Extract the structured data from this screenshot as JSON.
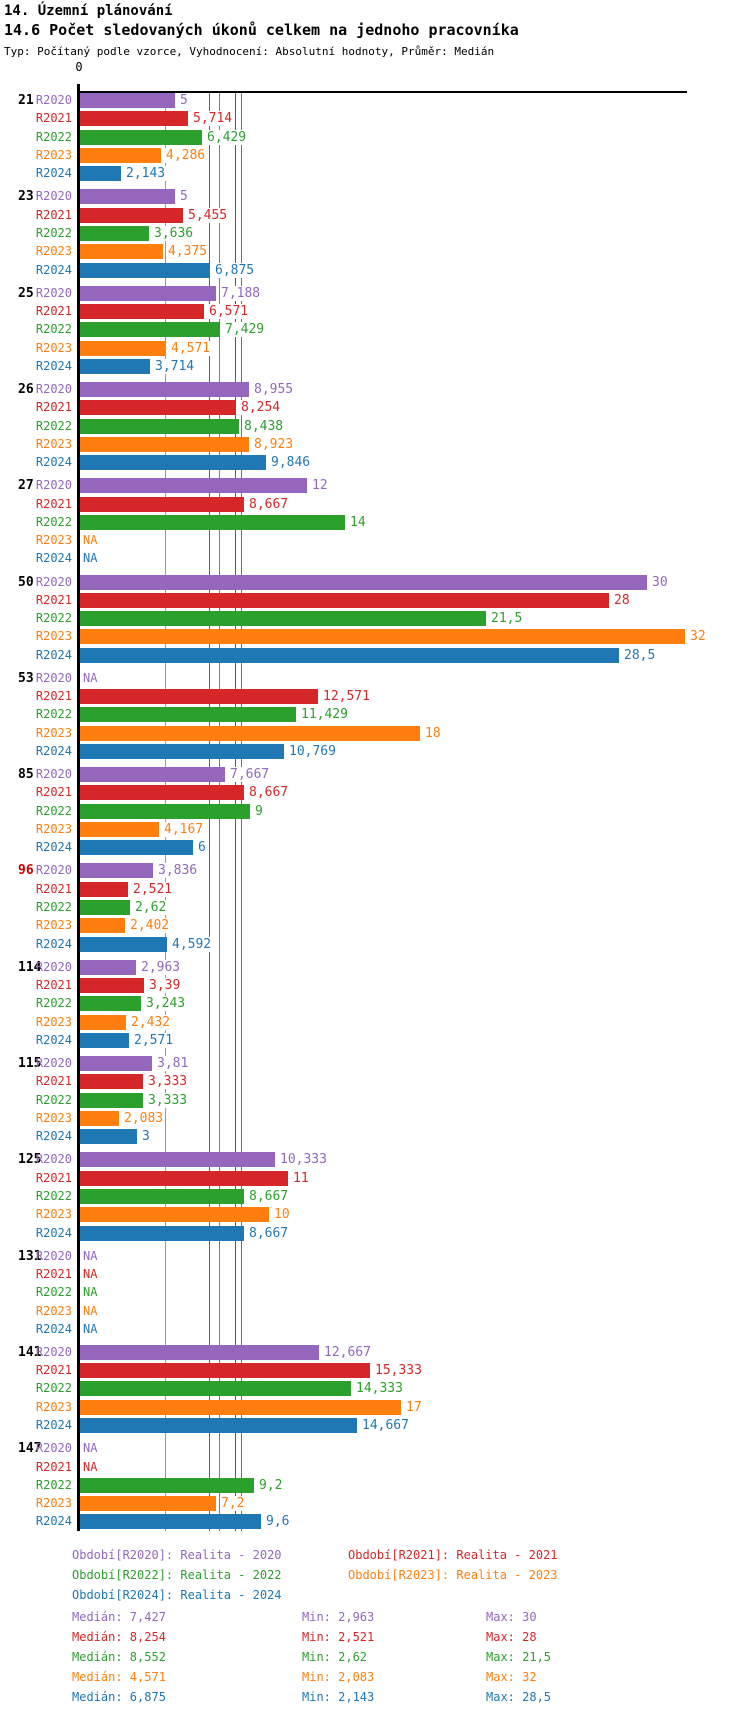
{
  "header": {
    "title": "14. Územní plánování",
    "subtitle": "14.6 Počet sledovaných úkonů celkem na jednoho pracovníka",
    "meta": "Typ: Počítaný podle vzorce, Vyhodnocení: Absolutní hodnoty, Průměr: Medián"
  },
  "chart_data": {
    "type": "bar",
    "orientation": "horizontal-grouped",
    "axis_zero_label": "0",
    "xlim": [
      0,
      32
    ],
    "na_text": "NA",
    "series": [
      "R2020",
      "R2021",
      "R2022",
      "R2023",
      "R2024"
    ],
    "series_colors": {
      "R2020": "#9467bd",
      "R2021": "#d62728",
      "R2022": "#2ca02c",
      "R2023": "#ff7f0e",
      "R2024": "#1f77b4"
    },
    "highlight_color": "#cc0000",
    "groups": [
      {
        "id": "21",
        "highlight": false,
        "values": [
          5,
          5.714,
          6.429,
          4.286,
          2.143
        ],
        "labels": [
          "5",
          "5,714",
          "6,429",
          "4,286",
          "2,143"
        ]
      },
      {
        "id": "23",
        "highlight": false,
        "values": [
          5,
          5.455,
          3.636,
          4.375,
          6.875
        ],
        "labels": [
          "5",
          "5,455",
          "3,636",
          "4,375",
          "6,875"
        ]
      },
      {
        "id": "25",
        "highlight": false,
        "values": [
          7.188,
          6.571,
          7.429,
          4.571,
          3.714
        ],
        "labels": [
          "7,188",
          "6,571",
          "7,429",
          "4,571",
          "3,714"
        ]
      },
      {
        "id": "26",
        "highlight": false,
        "values": [
          8.955,
          8.254,
          8.438,
          8.923,
          9.846
        ],
        "labels": [
          "8,955",
          "8,254",
          "8,438",
          "8,923",
          "9,846"
        ]
      },
      {
        "id": "27",
        "highlight": false,
        "values": [
          12,
          8.667,
          14,
          null,
          null
        ],
        "labels": [
          "12",
          "8,667",
          "14",
          "NA",
          "NA"
        ]
      },
      {
        "id": "50",
        "highlight": false,
        "values": [
          30,
          28,
          21.5,
          32,
          28.5
        ],
        "labels": [
          "30",
          "28",
          "21,5",
          "32",
          "28,5"
        ]
      },
      {
        "id": "53",
        "highlight": false,
        "values": [
          null,
          12.571,
          11.429,
          18,
          10.769
        ],
        "labels": [
          "NA",
          "12,571",
          "11,429",
          "18",
          "10,769"
        ]
      },
      {
        "id": "85",
        "highlight": false,
        "values": [
          7.667,
          8.667,
          9,
          4.167,
          6
        ],
        "labels": [
          "7,667",
          "8,667",
          "9",
          "4,167",
          "6"
        ]
      },
      {
        "id": "96",
        "highlight": true,
        "values": [
          3.836,
          2.521,
          2.62,
          2.402,
          4.592
        ],
        "labels": [
          "3,836",
          "2,521",
          "2,62",
          "2,402",
          "4,592"
        ]
      },
      {
        "id": "114",
        "highlight": false,
        "values": [
          2.963,
          3.39,
          3.243,
          2.432,
          2.571
        ],
        "labels": [
          "2,963",
          "3,39",
          "3,243",
          "2,432",
          "2,571"
        ]
      },
      {
        "id": "115",
        "highlight": false,
        "values": [
          3.81,
          3.333,
          3.333,
          2.083,
          3
        ],
        "labels": [
          "3,81",
          "3,333",
          "3,333",
          "2,083",
          "3"
        ]
      },
      {
        "id": "125",
        "highlight": false,
        "values": [
          10.333,
          11,
          8.667,
          10,
          8.667
        ],
        "labels": [
          "10,333",
          "11",
          "8,667",
          "10",
          "8,667"
        ]
      },
      {
        "id": "131",
        "highlight": false,
        "values": [
          null,
          null,
          null,
          null,
          null
        ],
        "labels": [
          "NA",
          "NA",
          "NA",
          "NA",
          "NA"
        ]
      },
      {
        "id": "141",
        "highlight": false,
        "values": [
          12.667,
          15.333,
          14.333,
          17,
          14.667
        ],
        "labels": [
          "12,667",
          "15,333",
          "14,333",
          "17",
          "14,667"
        ]
      },
      {
        "id": "147",
        "highlight": false,
        "values": [
          null,
          null,
          9.2,
          7.2,
          9.6
        ],
        "labels": [
          "NA",
          "NA",
          "9,2",
          "7,2",
          "9,6"
        ]
      }
    ],
    "reference_lines": [
      {
        "series": "R2023",
        "value": 4.571,
        "color": "#ff7f0e"
      },
      {
        "series": "R2024",
        "value": 6.875,
        "color": "#1f77b4"
      },
      {
        "series": "R2020",
        "value": 7.427,
        "color": "#9467bd"
      },
      {
        "series": "R2021",
        "value": 8.254,
        "color": "#d62728"
      },
      {
        "series": "R2022",
        "value": 8.552,
        "color": "#2ca02c"
      }
    ]
  },
  "legend": {
    "items": [
      {
        "label": "Období[R2020]: Realita - 2020",
        "color": "#9467bd"
      },
      {
        "label": "Období[R2021]: Realita - 2021",
        "color": "#d62728"
      },
      {
        "label": "Období[R2022]: Realita - 2022",
        "color": "#2ca02c"
      },
      {
        "label": "Období[R2023]: Realita - 2023",
        "color": "#ff7f0e"
      },
      {
        "label": "Období[R2024]: Realita - 2024",
        "color": "#1f77b4"
      }
    ]
  },
  "stats": {
    "rows": [
      {
        "median": "Medián: 7,427",
        "min": "Min: 2,963",
        "max": "Max: 30",
        "color": "#9467bd"
      },
      {
        "median": "Medián: 8,254",
        "min": "Min: 2,521",
        "max": "Max: 28",
        "color": "#d62728"
      },
      {
        "median": "Medián: 8,552",
        "min": "Min: 2,62",
        "max": "Max: 21,5",
        "color": "#2ca02c"
      },
      {
        "median": "Medián: 4,571",
        "min": "Min: 2,083",
        "max": "Max: 32",
        "color": "#ff7f0e"
      },
      {
        "median": "Medián: 6,875",
        "min": "Min: 2,143",
        "max": "Max: 28,5",
        "color": "#1f77b4"
      }
    ]
  }
}
